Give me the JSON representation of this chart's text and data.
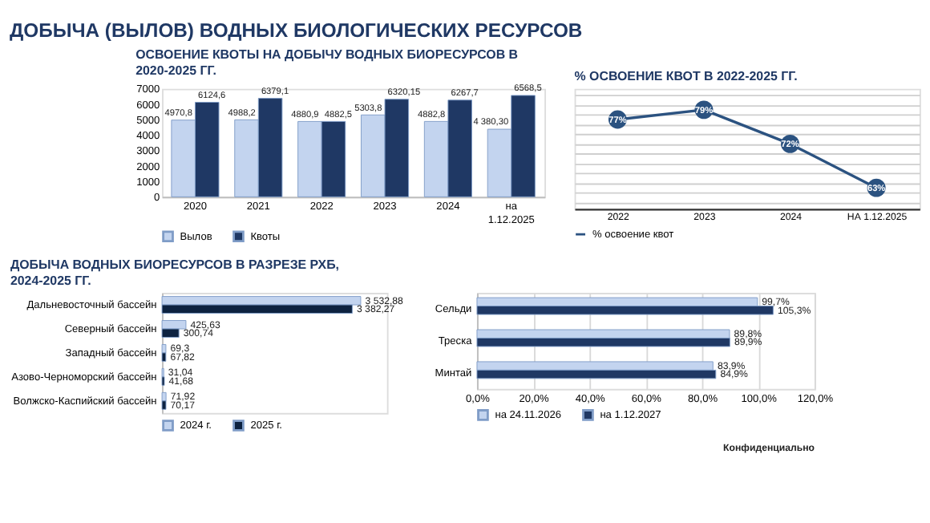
{
  "chart_data": [
    {
      "type": "bar",
      "title": "ДОБЫЧА (ВЫЛОВ) ВОДНЫХ БИОЛОГИЧЕСКИХ РЕСУРСОВ",
      "subtitle": "ОСВОЕНИЕ КВОТЫ НА ДОБЫЧУ ВОДНЫХ БИОРЕСУРСОВ В 2020-2025 ГГ.",
      "categories": [
        "2020",
        "2021",
        "2022",
        "2023",
        "2024",
        "на 1.12.2025"
      ],
      "series": [
        {
          "name": "Вылов",
          "color": "#c3d4ef",
          "values": [
            4970.8,
            4988.2,
            4880.9,
            5303.8,
            4882.8,
            4380.3
          ],
          "value_labels": [
            "4970,8",
            "4988,2",
            "4880,9",
            "5303,8",
            "4882,8",
            "4 380,30"
          ]
        },
        {
          "name": "Квоты",
          "color": "#1f3864",
          "values": [
            6124.6,
            6379.1,
            4882.5,
            6320.15,
            6267.7,
            6568.5
          ],
          "value_labels": [
            "6124,6",
            "6379,1",
            "4882,5",
            "6320,15",
            "6267,7",
            "6568,5"
          ]
        }
      ],
      "ylim": [
        0,
        7000
      ],
      "yticks": [
        0,
        1000,
        2000,
        3000,
        4000,
        5000,
        6000,
        7000
      ],
      "legend": "bottom"
    },
    {
      "type": "line",
      "title": "% ОСВОЕНИЕ КВОТ В 2022-2025 ГГ.",
      "categories": [
        "2022",
        "2023",
        "2024",
        "НА 1.12.2025"
      ],
      "series": [
        {
          "name": "% освоение квот",
          "color": "#2b5280",
          "values": [
            77,
            79,
            72,
            63
          ],
          "value_labels": [
            "77%",
            "79%",
            "72%",
            "63%"
          ]
        }
      ],
      "marker": "circle",
      "grid": "y",
      "tick_labels": "x",
      "legend": "bottom"
    },
    {
      "type": "bar",
      "orientation": "horizontal",
      "title": "ДОБЫЧА ВОДНЫХ БИОРЕСУРСОВ В РАЗРЕЗЕ РХБ, 2024-2025 ГГ.",
      "categories": [
        "Дальневосточный бассейн",
        "Северный бассейн",
        "Западный бассейн",
        "Азово-Черноморский бассейн",
        "Волжско-Каспийский бассейн"
      ],
      "series": [
        {
          "name": "2024 г.",
          "color": "#c3d4ef",
          "values": [
            3532.88,
            425.63,
            69.3,
            31.04,
            71.92
          ],
          "value_labels": [
            "3 532,88",
            "425,63",
            "69,3",
            "31,04",
            "71,92"
          ]
        },
        {
          "name": "2025 г.",
          "color": "#0d2240",
          "values": [
            3382.27,
            300.74,
            67.82,
            41.68,
            70.17
          ],
          "value_labels": [
            "3 382,27",
            "300,74",
            "67,82",
            "41,68",
            "70,17"
          ]
        }
      ],
      "tick_labels": "y",
      "legend": "bottom"
    },
    {
      "type": "bar",
      "orientation": "horizontal",
      "categories": [
        "Сельди",
        "Треска",
        "Минтай"
      ],
      "series": [
        {
          "name": "на 24.11.2026",
          "color": "#c3d4ef",
          "values": [
            99.7,
            89.8,
            83.9
          ],
          "value_labels": [
            "99,7%",
            "89,8%",
            "83,9%"
          ]
        },
        {
          "name": "на 1.12.2027",
          "color": "#1f3864",
          "values": [
            105.3,
            89.9,
            84.9
          ],
          "value_labels": [
            "105,3%",
            "89,9%",
            "84,9%"
          ]
        }
      ],
      "xlim": [
        0,
        120
      ],
      "xticks": [
        {
          "value": 0,
          "label": "0,0%"
        },
        {
          "value": 20,
          "label": "20,0%"
        },
        {
          "value": 40,
          "label": "40,0%"
        },
        {
          "value": 60,
          "label": "60,0%"
        },
        {
          "value": 80,
          "label": "80,0%"
        },
        {
          "value": 100,
          "label": "100,0%"
        },
        {
          "value": 120,
          "label": "120,0%"
        }
      ],
      "grid": "x",
      "legend": "bottom",
      "annotations": [
        "Конфиденциально"
      ]
    }
  ]
}
